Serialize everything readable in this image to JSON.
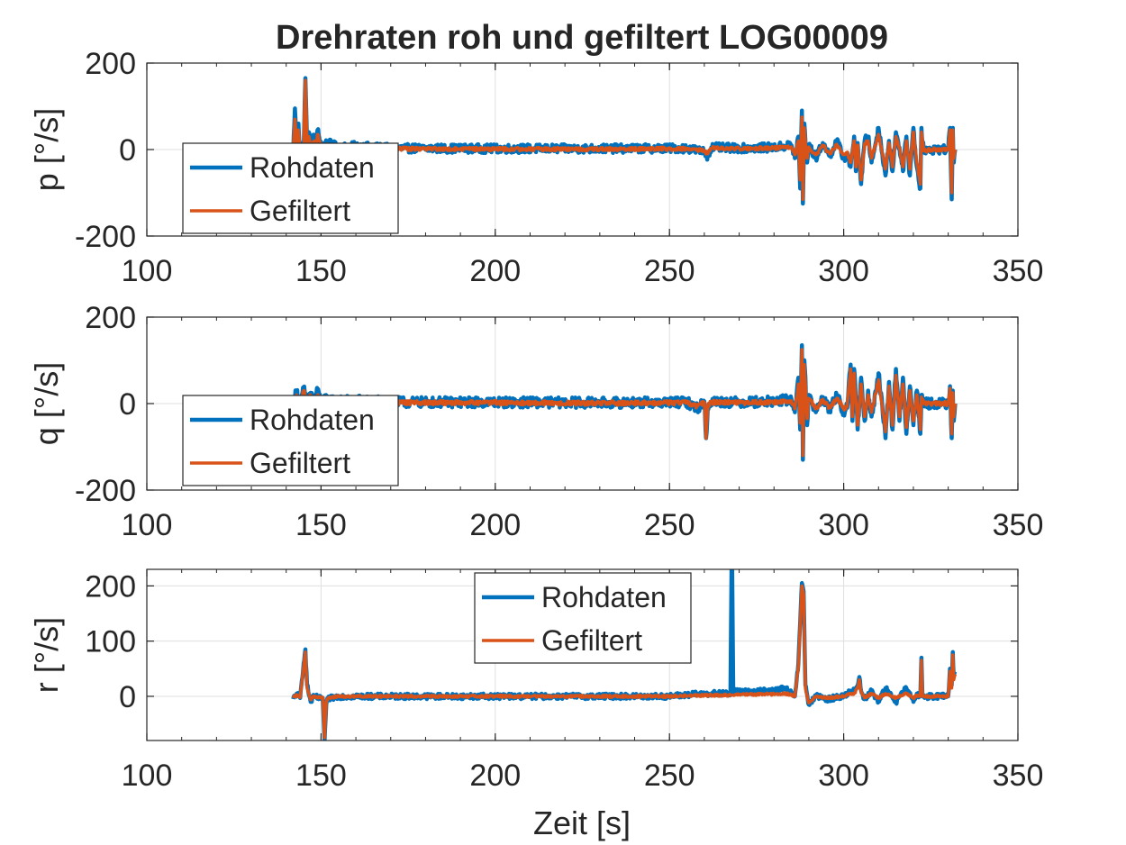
{
  "figure": {
    "title": "Drehraten roh und gefiltert LOG00009",
    "xlabel": "Zeit [s]"
  },
  "colors": {
    "raw": "#0072bd",
    "filtered": "#d95319"
  },
  "chart_data": [
    {
      "type": "line",
      "ylabel": "p [°/s]",
      "xlim": [
        100,
        350
      ],
      "ylim": [
        -200,
        200
      ],
      "xticks": [
        100,
        150,
        200,
        250,
        300,
        350
      ],
      "yticks": [
        -200,
        0,
        200
      ],
      "grid": true,
      "legend": {
        "placement": "bottom-left",
        "entries": [
          "Rohdaten",
          "Gefiltert"
        ]
      },
      "series": [
        {
          "name": "Rohdaten",
          "noise": 10,
          "x": [
            142,
            142.5,
            143,
            143.5,
            144,
            144.5,
            145,
            145.5,
            146,
            146.5,
            147,
            148,
            148.5,
            149,
            150,
            152,
            155,
            160,
            170,
            200,
            230,
            255,
            260,
            261,
            262,
            270,
            280,
            285,
            286,
            287,
            287.5,
            288,
            288.3,
            288.7,
            289,
            289.5,
            290,
            292,
            294,
            296,
            298,
            300,
            301,
            302,
            303,
            303.5,
            304,
            305,
            306,
            307,
            308,
            310,
            312,
            313,
            314,
            315,
            316,
            317,
            318,
            319,
            320,
            321,
            322,
            322.3,
            323,
            325,
            328,
            330,
            330.5,
            331,
            331.3,
            331.6,
            332
          ],
          "y": [
            -5,
            95,
            10,
            60,
            -10,
            15,
            5,
            165,
            10,
            40,
            10,
            30,
            5,
            45,
            10,
            15,
            5,
            8,
            3,
            2,
            2,
            3,
            -5,
            -15,
            5,
            3,
            5,
            10,
            -20,
            30,
            -90,
            90,
            -125,
            60,
            20,
            -30,
            10,
            -20,
            15,
            -15,
            20,
            -20,
            -10,
            -40,
            30,
            -50,
            15,
            -80,
            20,
            30,
            -30,
            50,
            -60,
            20,
            -50,
            40,
            5,
            -50,
            30,
            -60,
            50,
            -40,
            -90,
            50,
            -5,
            0,
            0,
            0,
            50,
            -115,
            50,
            -30,
            0
          ]
        },
        {
          "name": "Gefiltert",
          "noise": 4,
          "x": [
            142,
            142.5,
            143,
            143.5,
            144,
            144.5,
            145,
            145.5,
            146,
            146.5,
            147,
            148,
            148.5,
            149,
            150,
            152,
            155,
            160,
            170,
            200,
            230,
            255,
            260,
            261,
            262,
            270,
            280,
            285,
            286,
            287,
            287.5,
            288,
            288.3,
            288.7,
            289,
            289.5,
            290,
            292,
            294,
            296,
            298,
            300,
            301,
            302,
            303,
            303.5,
            304,
            305,
            306,
            307,
            308,
            310,
            312,
            313,
            314,
            315,
            316,
            317,
            318,
            319,
            320,
            321,
            322,
            322.3,
            323,
            325,
            328,
            330,
            330.5,
            331,
            331.3,
            331.6,
            332
          ],
          "y": [
            -3,
            70,
            5,
            45,
            -5,
            10,
            3,
            160,
            8,
            30,
            8,
            20,
            3,
            35,
            8,
            10,
            3,
            5,
            2,
            1,
            1,
            2,
            -3,
            -10,
            3,
            2,
            3,
            6,
            -12,
            20,
            -70,
            75,
            -115,
            50,
            15,
            -20,
            6,
            -12,
            10,
            -10,
            12,
            -12,
            -6,
            -30,
            20,
            -40,
            10,
            -70,
            12,
            20,
            -20,
            35,
            -45,
            15,
            -40,
            30,
            3,
            -40,
            20,
            -45,
            40,
            -30,
            -80,
            40,
            -3,
            0,
            0,
            0,
            45,
            -100,
            45,
            -20,
            0
          ]
        }
      ]
    },
    {
      "type": "line",
      "ylabel": "q [°/s]",
      "xlim": [
        100,
        350
      ],
      "ylim": [
        -200,
        200
      ],
      "xticks": [
        100,
        150,
        200,
        250,
        300,
        350
      ],
      "yticks": [
        -200,
        0,
        200
      ],
      "grid": true,
      "legend": {
        "placement": "bottom-left",
        "entries": [
          "Rohdaten",
          "Gefiltert"
        ]
      },
      "series": [
        {
          "name": "Rohdaten",
          "noise": 12,
          "x": [
            142,
            143,
            144,
            145,
            146,
            147,
            148,
            149,
            150,
            152,
            155,
            160,
            170,
            200,
            230,
            255,
            258,
            260,
            260.5,
            261,
            262,
            270,
            280,
            285,
            286,
            287,
            287.5,
            288,
            288.3,
            288.7,
            289,
            289.5,
            290,
            292,
            294,
            296,
            298,
            300,
            301,
            302,
            302.5,
            303,
            304,
            305,
            306,
            307,
            308,
            310,
            312,
            313,
            314,
            315,
            316,
            317,
            318,
            319,
            320,
            321,
            322,
            322.3,
            323,
            325,
            328,
            330,
            330.5,
            331,
            331.3,
            331.6,
            332
          ],
          "y": [
            0,
            30,
            -10,
            35,
            5,
            25,
            10,
            30,
            5,
            10,
            5,
            8,
            3,
            3,
            2,
            3,
            -10,
            5,
            -80,
            -10,
            5,
            3,
            5,
            10,
            -20,
            60,
            -60,
            135,
            -130,
            100,
            60,
            -50,
            20,
            -20,
            15,
            -15,
            20,
            -20,
            -10,
            90,
            -40,
            80,
            -60,
            60,
            -40,
            30,
            -30,
            70,
            -80,
            50,
            -60,
            80,
            -40,
            60,
            -70,
            40,
            -50,
            30,
            -70,
            20,
            0,
            0,
            0,
            0,
            40,
            -80,
            30,
            -40,
            0
          ]
        },
        {
          "name": "Gefiltert",
          "noise": 5,
          "x": [
            142,
            143,
            144,
            145,
            146,
            147,
            148,
            149,
            150,
            152,
            155,
            160,
            170,
            200,
            230,
            255,
            258,
            260,
            260.5,
            261,
            262,
            270,
            280,
            285,
            286,
            287,
            287.5,
            288,
            288.3,
            288.7,
            289,
            289.5,
            290,
            292,
            294,
            296,
            298,
            300,
            301,
            302,
            302.5,
            303,
            304,
            305,
            306,
            307,
            308,
            310,
            312,
            313,
            314,
            315,
            316,
            317,
            318,
            319,
            320,
            321,
            322,
            322.3,
            323,
            325,
            328,
            330,
            330.5,
            331,
            331.3,
            331.6,
            332
          ],
          "y": [
            0,
            20,
            -6,
            30,
            3,
            20,
            6,
            20,
            3,
            6,
            3,
            5,
            2,
            2,
            1,
            2,
            -6,
            3,
            -80,
            -5,
            3,
            2,
            3,
            6,
            -12,
            45,
            -45,
            125,
            -120,
            90,
            45,
            -35,
            12,
            -12,
            10,
            -10,
            12,
            -12,
            -6,
            80,
            -30,
            70,
            -50,
            45,
            -30,
            20,
            -20,
            55,
            -65,
            40,
            -50,
            65,
            -30,
            45,
            -55,
            30,
            -40,
            20,
            -60,
            15,
            0,
            0,
            0,
            0,
            35,
            -70,
            25,
            -30,
            0
          ]
        }
      ]
    },
    {
      "type": "line",
      "ylabel": "r [°/s]",
      "xlim": [
        100,
        350
      ],
      "ylim": [
        -80,
        230
      ],
      "xticks": [
        100,
        150,
        200,
        250,
        300,
        350
      ],
      "yticks": [
        0,
        100,
        200
      ],
      "grid": true,
      "legend": {
        "placement": "top-center",
        "entries": [
          "Rohdaten",
          "Gefiltert"
        ]
      },
      "series": [
        {
          "name": "Rohdaten",
          "noise": 5,
          "x": [
            142,
            143,
            144,
            145,
            145.5,
            146,
            147,
            148,
            150,
            150.5,
            151,
            151.5,
            152,
            153,
            155,
            160,
            200,
            250,
            260,
            267.5,
            267.8,
            268,
            268.3,
            270,
            280,
            283,
            285,
            286,
            287,
            288,
            288.5,
            289,
            290,
            292,
            295,
            300,
            302,
            303,
            304,
            304.5,
            305,
            306,
            308,
            310,
            312,
            315,
            318,
            320,
            321,
            322,
            322.3,
            322.6,
            323,
            325,
            328,
            330,
            330.5,
            331,
            331.3,
            331.6,
            332
          ],
          "y": [
            -5,
            5,
            -3,
            60,
            85,
            20,
            -10,
            0,
            -5,
            -3,
            -80,
            -15,
            -5,
            -3,
            0,
            0,
            0,
            0,
            5,
            5,
            230,
            230,
            10,
            8,
            10,
            15,
            5,
            0,
            60,
            205,
            190,
            20,
            -15,
            0,
            -5,
            0,
            10,
            10,
            20,
            35,
            10,
            -5,
            10,
            -10,
            15,
            -10,
            15,
            -10,
            5,
            0,
            70,
            0,
            0,
            0,
            0,
            0,
            50,
            20,
            80,
            35,
            45
          ]
        },
        {
          "name": "Gefiltert",
          "noise": 2,
          "x": [
            142,
            143,
            144,
            145,
            145.5,
            146,
            147,
            148,
            150,
            150.5,
            151,
            151.5,
            152,
            153,
            155,
            160,
            200,
            250,
            260,
            267.5,
            267.8,
            268,
            268.3,
            270,
            280,
            283,
            285,
            286,
            287,
            288,
            288.5,
            289,
            290,
            292,
            295,
            300,
            302,
            303,
            304,
            304.5,
            305,
            306,
            308,
            310,
            312,
            315,
            318,
            320,
            321,
            322,
            322.3,
            322.6,
            323,
            325,
            328,
            330,
            330.5,
            331,
            331.3,
            331.6,
            332
          ],
          "y": [
            -3,
            3,
            -2,
            55,
            80,
            15,
            -6,
            0,
            -3,
            -2,
            -75,
            -10,
            -3,
            -2,
            0,
            0,
            0,
            0,
            2,
            2,
            2,
            2,
            2,
            3,
            4,
            5,
            3,
            0,
            55,
            200,
            185,
            15,
            -12,
            0,
            -3,
            0,
            5,
            5,
            15,
            30,
            8,
            -3,
            5,
            -3,
            5,
            -3,
            5,
            -3,
            2,
            0,
            65,
            0,
            0,
            0,
            0,
            0,
            45,
            15,
            75,
            30,
            40
          ]
        }
      ]
    }
  ]
}
